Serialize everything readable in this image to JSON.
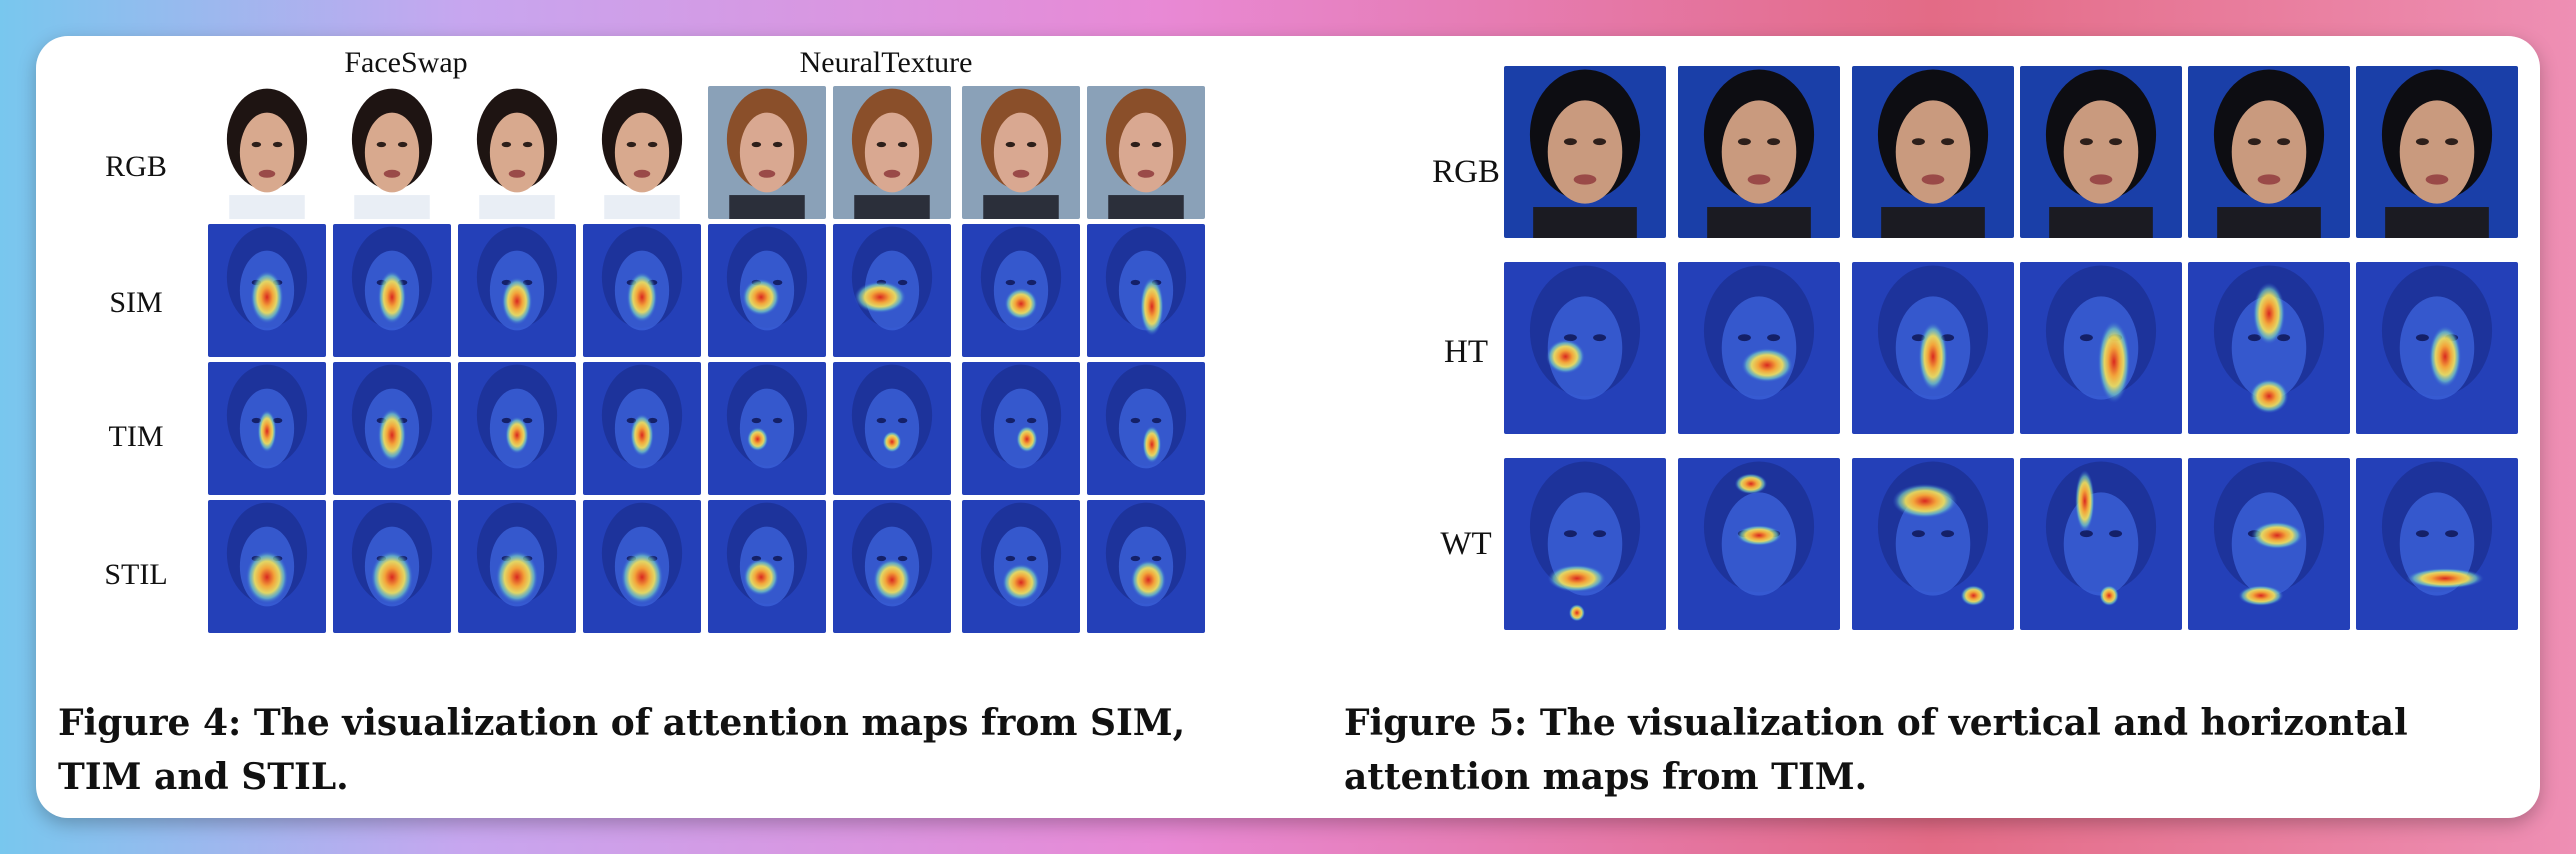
{
  "figure4": {
    "groups": [
      "FaceSwap",
      "NeuralTexture"
    ],
    "rows": [
      "RGB",
      "SIM",
      "TIM",
      "STIL"
    ],
    "caption": "Figure 4: The visualization of attention maps from SIM, TIM and STIL."
  },
  "figure5": {
    "rows": [
      "RGB",
      "HT",
      "WT"
    ],
    "caption": "Figure 5: The visualization of vertical and horizontal attention maps from TIM."
  },
  "colors": {
    "attention_bg": "#1f3fc2",
    "attention_hot": "#e0302a",
    "attention_warm": "#f6d94a"
  }
}
